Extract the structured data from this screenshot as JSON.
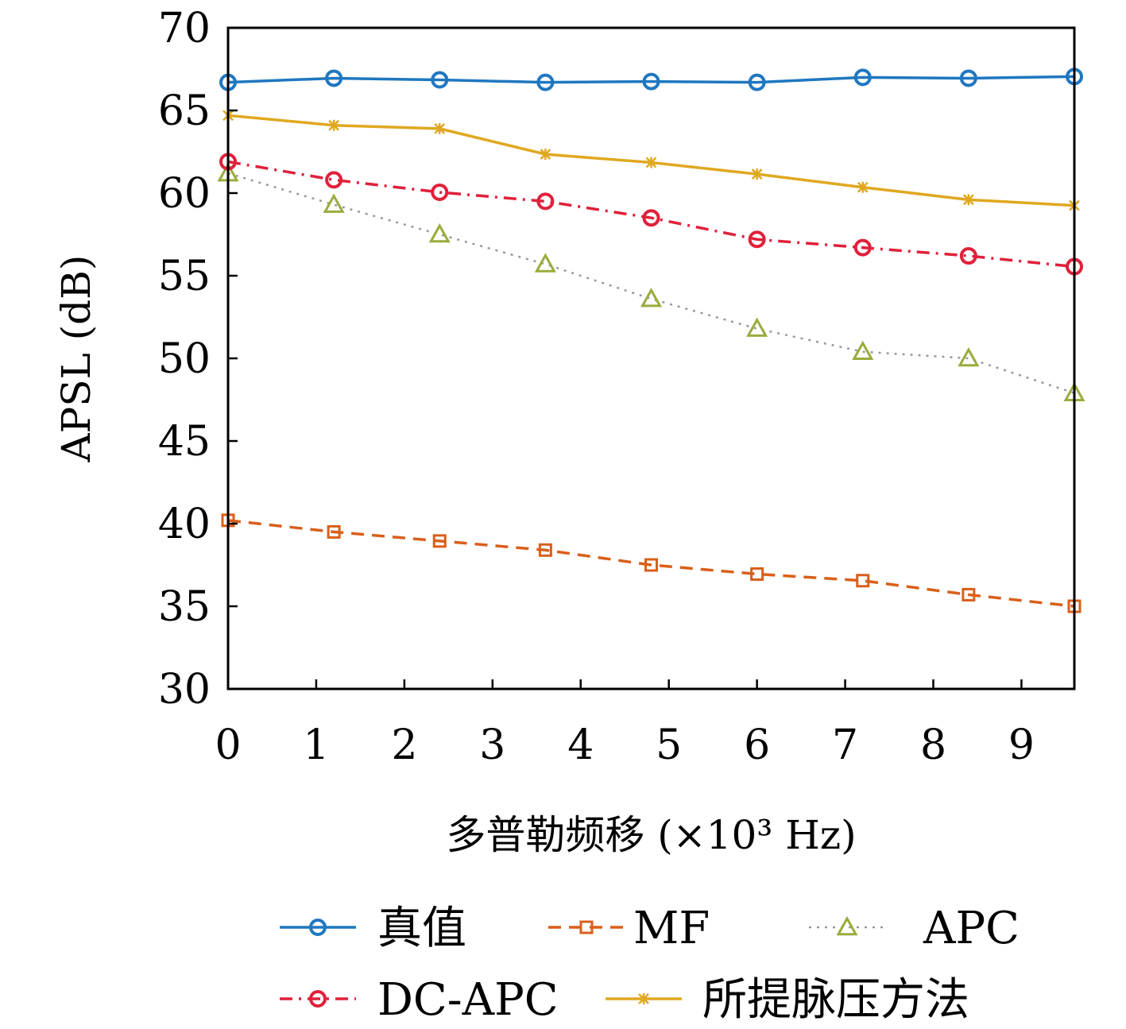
{
  "chart_data": {
    "type": "line",
    "xlabel": "多普勒频移 (×10³ Hz)",
    "ylabel": "APSL (dB)",
    "xlim": [
      0,
      9.6
    ],
    "ylim": [
      30,
      70
    ],
    "x_ticks": [
      "0",
      "1",
      "2",
      "3",
      "4",
      "5",
      "6",
      "7",
      "8",
      "9"
    ],
    "y_ticks": [
      "30",
      "35",
      "40",
      "45",
      "50",
      "55",
      "60",
      "65",
      "70"
    ],
    "x": [
      0,
      1.2,
      2.4,
      3.6,
      4.8,
      6.0,
      7.2,
      8.4,
      9.6
    ],
    "grid": false,
    "legend_position": "bottom",
    "series": [
      {
        "name": "真值",
        "color": "#1f77c0",
        "line": "solid",
        "marker": "circle",
        "values": [
          66.7,
          66.95,
          66.85,
          66.7,
          66.75,
          66.7,
          67.0,
          66.95,
          67.05
        ]
      },
      {
        "name": "MF",
        "color": "#d95f1a",
        "line": "dashed",
        "marker": "square",
        "values": [
          40.2,
          39.5,
          38.95,
          38.4,
          37.5,
          36.95,
          36.55,
          35.7,
          35.0
        ]
      },
      {
        "name": "APC",
        "color": "#9bab3c",
        "line": "dotted",
        "marker": "triangle",
        "values": [
          61.2,
          59.3,
          57.5,
          55.7,
          53.6,
          51.8,
          50.4,
          50.0,
          47.9
        ]
      },
      {
        "name": "DC-APC",
        "color": "#e0203a",
        "line": "dashdot",
        "marker": "circle",
        "values": [
          61.9,
          60.8,
          60.05,
          59.5,
          58.5,
          57.2,
          56.7,
          56.2,
          55.55
        ]
      },
      {
        "name": "所提脉压方法",
        "color": "#e0a820",
        "line": "solid",
        "marker": "star",
        "values": [
          64.7,
          64.1,
          63.9,
          62.35,
          61.85,
          61.15,
          60.35,
          59.6,
          59.25
        ]
      }
    ]
  }
}
